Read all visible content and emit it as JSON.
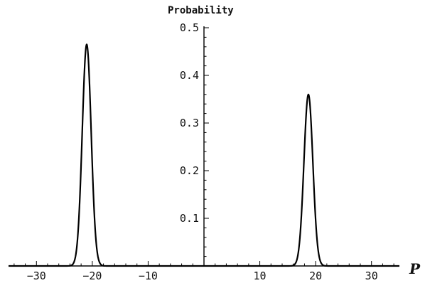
{
  "chart_data": {
    "type": "line",
    "title": "Probability",
    "xlabel": "P",
    "ylabel": "",
    "xlim": [
      -35,
      35
    ],
    "ylim": [
      0,
      0.5
    ],
    "xticks": [
      -30,
      -20,
      -10,
      10,
      20,
      30
    ],
    "xtick_labels": [
      "-30",
      "-20",
      "-10",
      "10",
      "20",
      "30"
    ],
    "yticks": [
      0.1,
      0.2,
      0.3,
      0.4,
      0.5
    ],
    "ytick_labels": [
      "0.1",
      "0.2",
      "0.3",
      "0.4",
      "0.5"
    ],
    "grid": false,
    "legend": "none",
    "series": [
      {
        "color": "#000000",
        "peaks": [
          {
            "center": -21,
            "height": 0.465,
            "sigma": 0.8
          },
          {
            "center": 18.7,
            "height": 0.36,
            "sigma": 0.8
          }
        ]
      }
    ]
  }
}
